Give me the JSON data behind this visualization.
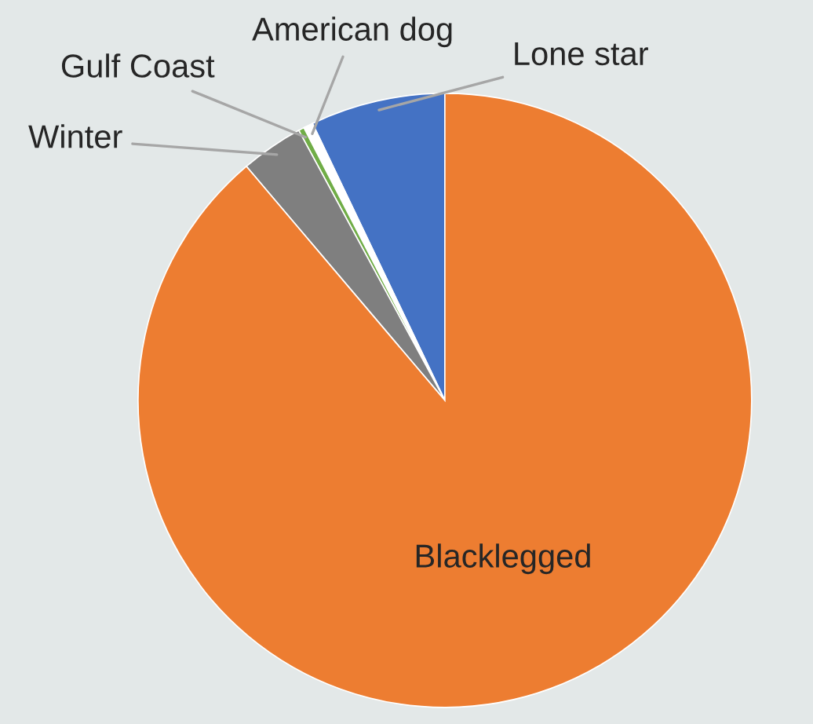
{
  "chart_data": {
    "type": "pie",
    "categories": [
      "Lone star",
      "American dog",
      "Gulf Coast",
      "Winter",
      "Blacklegged"
    ],
    "values": [
      7.1,
      0.5,
      0.3,
      3.3,
      88.8
    ],
    "colors": [
      "#4472c4",
      "#ffffff",
      "#70ad47",
      "#7f7f7f",
      "#ed7d31"
    ]
  }
}
